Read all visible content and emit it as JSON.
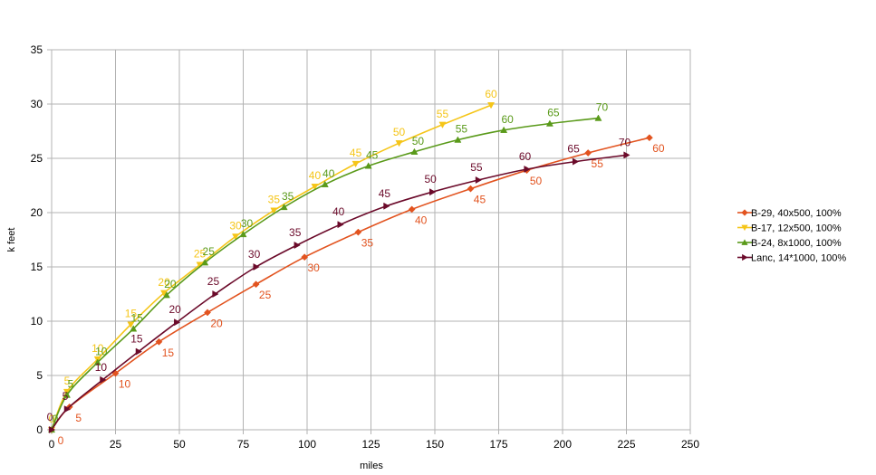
{
  "chart_data": {
    "type": "line",
    "title": "",
    "xlabel": "miles",
    "ylabel": "k feet",
    "xlim": [
      0,
      250
    ],
    "ylim": [
      0,
      35
    ],
    "x_ticks": [
      "0",
      "25",
      "50",
      "75",
      "100",
      "125",
      "150",
      "175",
      "200",
      "225",
      "250"
    ],
    "y_ticks": [
      "0",
      "5",
      "10",
      "15",
      "20",
      "25",
      "30",
      "35"
    ],
    "grid": true,
    "legend_position": "right",
    "series": [
      {
        "name": "B-29, 40x500, 100%",
        "color": "#e2531f",
        "marker": "diamond",
        "points": [
          {
            "x": 0,
            "y": 0,
            "label": "0"
          },
          {
            "x": 7,
            "y": 2.1,
            "label": "5"
          },
          {
            "x": 25,
            "y": 5.2,
            "label": "10"
          },
          {
            "x": 42,
            "y": 8.1,
            "label": "15"
          },
          {
            "x": 61,
            "y": 10.8,
            "label": "20"
          },
          {
            "x": 80,
            "y": 13.4,
            "label": "25"
          },
          {
            "x": 99,
            "y": 15.9,
            "label": "30"
          },
          {
            "x": 120,
            "y": 18.2,
            "label": "35"
          },
          {
            "x": 141,
            "y": 20.3,
            "label": "40"
          },
          {
            "x": 164,
            "y": 22.2,
            "label": "45"
          },
          {
            "x": 186,
            "y": 23.9,
            "label": "50"
          },
          {
            "x": 210,
            "y": 25.5,
            "label": "55"
          },
          {
            "x": 234,
            "y": 26.9,
            "label": "60"
          }
        ]
      },
      {
        "name": "B-17, 12x500, 100%",
        "color": "#f5c518",
        "marker": "triangle-down",
        "points": [
          {
            "x": 0,
            "y": 0,
            "label": "0"
          },
          {
            "x": 6,
            "y": 3.5,
            "label": "5"
          },
          {
            "x": 18,
            "y": 6.5,
            "label": "10"
          },
          {
            "x": 31,
            "y": 9.7,
            "label": "15"
          },
          {
            "x": 44,
            "y": 12.6,
            "label": "20"
          },
          {
            "x": 58,
            "y": 15.2,
            "label": "25"
          },
          {
            "x": 72,
            "y": 17.8,
            "label": "30"
          },
          {
            "x": 87,
            "y": 20.2,
            "label": "35"
          },
          {
            "x": 103,
            "y": 22.4,
            "label": "40"
          },
          {
            "x": 119,
            "y": 24.5,
            "label": "45"
          },
          {
            "x": 136,
            "y": 26.4,
            "label": "50"
          },
          {
            "x": 153,
            "y": 28.1,
            "label": "55"
          },
          {
            "x": 172,
            "y": 29.9,
            "label": "60"
          }
        ]
      },
      {
        "name": "B-24, 8x1000, 100%",
        "color": "#5a9a1a",
        "marker": "triangle-up",
        "points": [
          {
            "x": 0,
            "y": 0,
            "label": "0"
          },
          {
            "x": 6,
            "y": 3.2,
            "label": "5"
          },
          {
            "x": 18,
            "y": 6.2,
            "label": "10"
          },
          {
            "x": 32,
            "y": 9.3,
            "label": "15"
          },
          {
            "x": 45,
            "y": 12.4,
            "label": "20"
          },
          {
            "x": 60,
            "y": 15.4,
            "label": "25"
          },
          {
            "x": 75,
            "y": 18.0,
            "label": "30"
          },
          {
            "x": 91,
            "y": 20.5,
            "label": "35"
          },
          {
            "x": 107,
            "y": 22.6,
            "label": "40"
          },
          {
            "x": 124,
            "y": 24.3,
            "label": "45"
          },
          {
            "x": 142,
            "y": 25.6,
            "label": "50"
          },
          {
            "x": 159,
            "y": 26.7,
            "label": "55"
          },
          {
            "x": 177,
            "y": 27.6,
            "label": "60"
          },
          {
            "x": 195,
            "y": 28.2,
            "label": "65"
          },
          {
            "x": 214,
            "y": 28.7,
            "label": "70"
          }
        ]
      },
      {
        "name": "Lanc, 14*1000, 100%",
        "color": "#6b0a2a",
        "marker": "triangle-right",
        "points": [
          {
            "x": 0,
            "y": 0,
            "label": "0"
          },
          {
            "x": 6,
            "y": 1.9,
            "label": "5"
          },
          {
            "x": 20,
            "y": 4.6,
            "label": "10"
          },
          {
            "x": 34,
            "y": 7.2,
            "label": "15"
          },
          {
            "x": 49,
            "y": 9.9,
            "label": "20"
          },
          {
            "x": 64,
            "y": 12.5,
            "label": "25"
          },
          {
            "x": 80,
            "y": 15.0,
            "label": "30"
          },
          {
            "x": 96,
            "y": 17.0,
            "label": "35"
          },
          {
            "x": 113,
            "y": 18.9,
            "label": "40"
          },
          {
            "x": 131,
            "y": 20.6,
            "label": "45"
          },
          {
            "x": 149,
            "y": 21.9,
            "label": "50"
          },
          {
            "x": 167,
            "y": 23.0,
            "label": "55"
          },
          {
            "x": 186,
            "y": 24.0,
            "label": "60"
          },
          {
            "x": 205,
            "y": 24.7,
            "label": "65"
          },
          {
            "x": 225,
            "y": 25.3,
            "label": "70"
          }
        ]
      }
    ]
  }
}
